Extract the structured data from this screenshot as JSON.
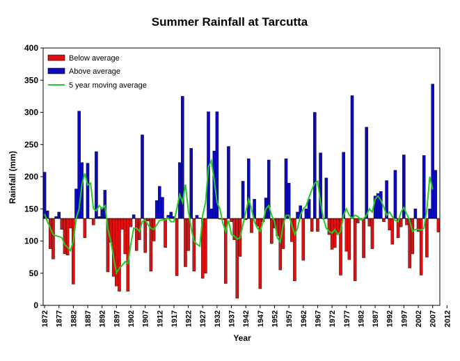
{
  "chart_data": {
    "type": "bar",
    "title": "Summer Rainfall at Tarcutta",
    "xlabel": "Year",
    "ylabel": "Rainfall (mm)",
    "ylim": [
      0,
      400
    ],
    "yticks": [
      0,
      50,
      100,
      150,
      200,
      250,
      300,
      350,
      400
    ],
    "xticks": [
      "1872",
      "1877",
      "1882",
      "1887",
      "1892",
      "1897",
      "1902",
      "1907",
      "1912",
      "1917",
      "1922",
      "1927",
      "1932",
      "1937",
      "1942",
      "1947",
      "1952",
      "1957",
      "1962",
      "1967",
      "1972",
      "1977",
      "1982",
      "1987",
      "1992",
      "1997",
      "2002",
      "2007",
      "2012"
    ],
    "baseline": 135,
    "year_start": 1872,
    "grid": false,
    "legend_position": "top-left",
    "legend": {
      "below": "Below average",
      "above": "Above average",
      "moving": "5 year moving average"
    },
    "colors": {
      "below": "#dd1111",
      "above": "#0b0bbb",
      "moving": "#22cc22"
    },
    "values": [
      207,
      147,
      88,
      72,
      138,
      145,
      118,
      80,
      78,
      120,
      33,
      181,
      302,
      222,
      105,
      221,
      135,
      125,
      239,
      138,
      152,
      179,
      52,
      98,
      45,
      30,
      22,
      118,
      80,
      22,
      122,
      141,
      85,
      102,
      265,
      82,
      131,
      53,
      100,
      163,
      185,
      168,
      90,
      140,
      145,
      138,
      46,
      222,
      325,
      60,
      85,
      244,
      53,
      140,
      136,
      42,
      50,
      301,
      150,
      240,
      301,
      134,
      133,
      34,
      247,
      130,
      102,
      11,
      76,
      193,
      133,
      228,
      113,
      165,
      123,
      26,
      130,
      167,
      226,
      96,
      120,
      108,
      55,
      88,
      228,
      190,
      99,
      38,
      145,
      155,
      70,
      150,
      165,
      115,
      300,
      115,
      237,
      135,
      198,
      110,
      87,
      90,
      111,
      47,
      238,
      84,
      71,
      326,
      38,
      128,
      135,
      74,
      277,
      123,
      88,
      170,
      174,
      177,
      130,
      194,
      117,
      95,
      210,
      105,
      122,
      234,
      125,
      58,
      80,
      150,
      115,
      47,
      233,
      75,
      150,
      344,
      210,
      114
    ],
    "moving_average": [
      142,
      130,
      120,
      110,
      108,
      107,
      105,
      95,
      90,
      85,
      100,
      135,
      150,
      188,
      205,
      187,
      190,
      150,
      147,
      155,
      150,
      155,
      120,
      100,
      75,
      50,
      58,
      62,
      68,
      65,
      95,
      120,
      120,
      115,
      130,
      133,
      125,
      120,
      118,
      125,
      132,
      133,
      133,
      136,
      130,
      130,
      150,
      172,
      160,
      188,
      148,
      120,
      100,
      95,
      92,
      140,
      160,
      215,
      225,
      195,
      160,
      150,
      128,
      115,
      132,
      110,
      108,
      103,
      105,
      125,
      145,
      165,
      150,
      130,
      120,
      115,
      130,
      150,
      155,
      140,
      130,
      105,
      98,
      125,
      140,
      140,
      125,
      110,
      120,
      140,
      150,
      155,
      168,
      180,
      190,
      193,
      160,
      135,
      120,
      115,
      112,
      118,
      110,
      115,
      140,
      150,
      140,
      135,
      140,
      138,
      133,
      135,
      140,
      150,
      145,
      165,
      170,
      163,
      153,
      140,
      145,
      138,
      132,
      130,
      145,
      152,
      142,
      132,
      115,
      118,
      118,
      117,
      120,
      150,
      200,
      180
    ]
  }
}
